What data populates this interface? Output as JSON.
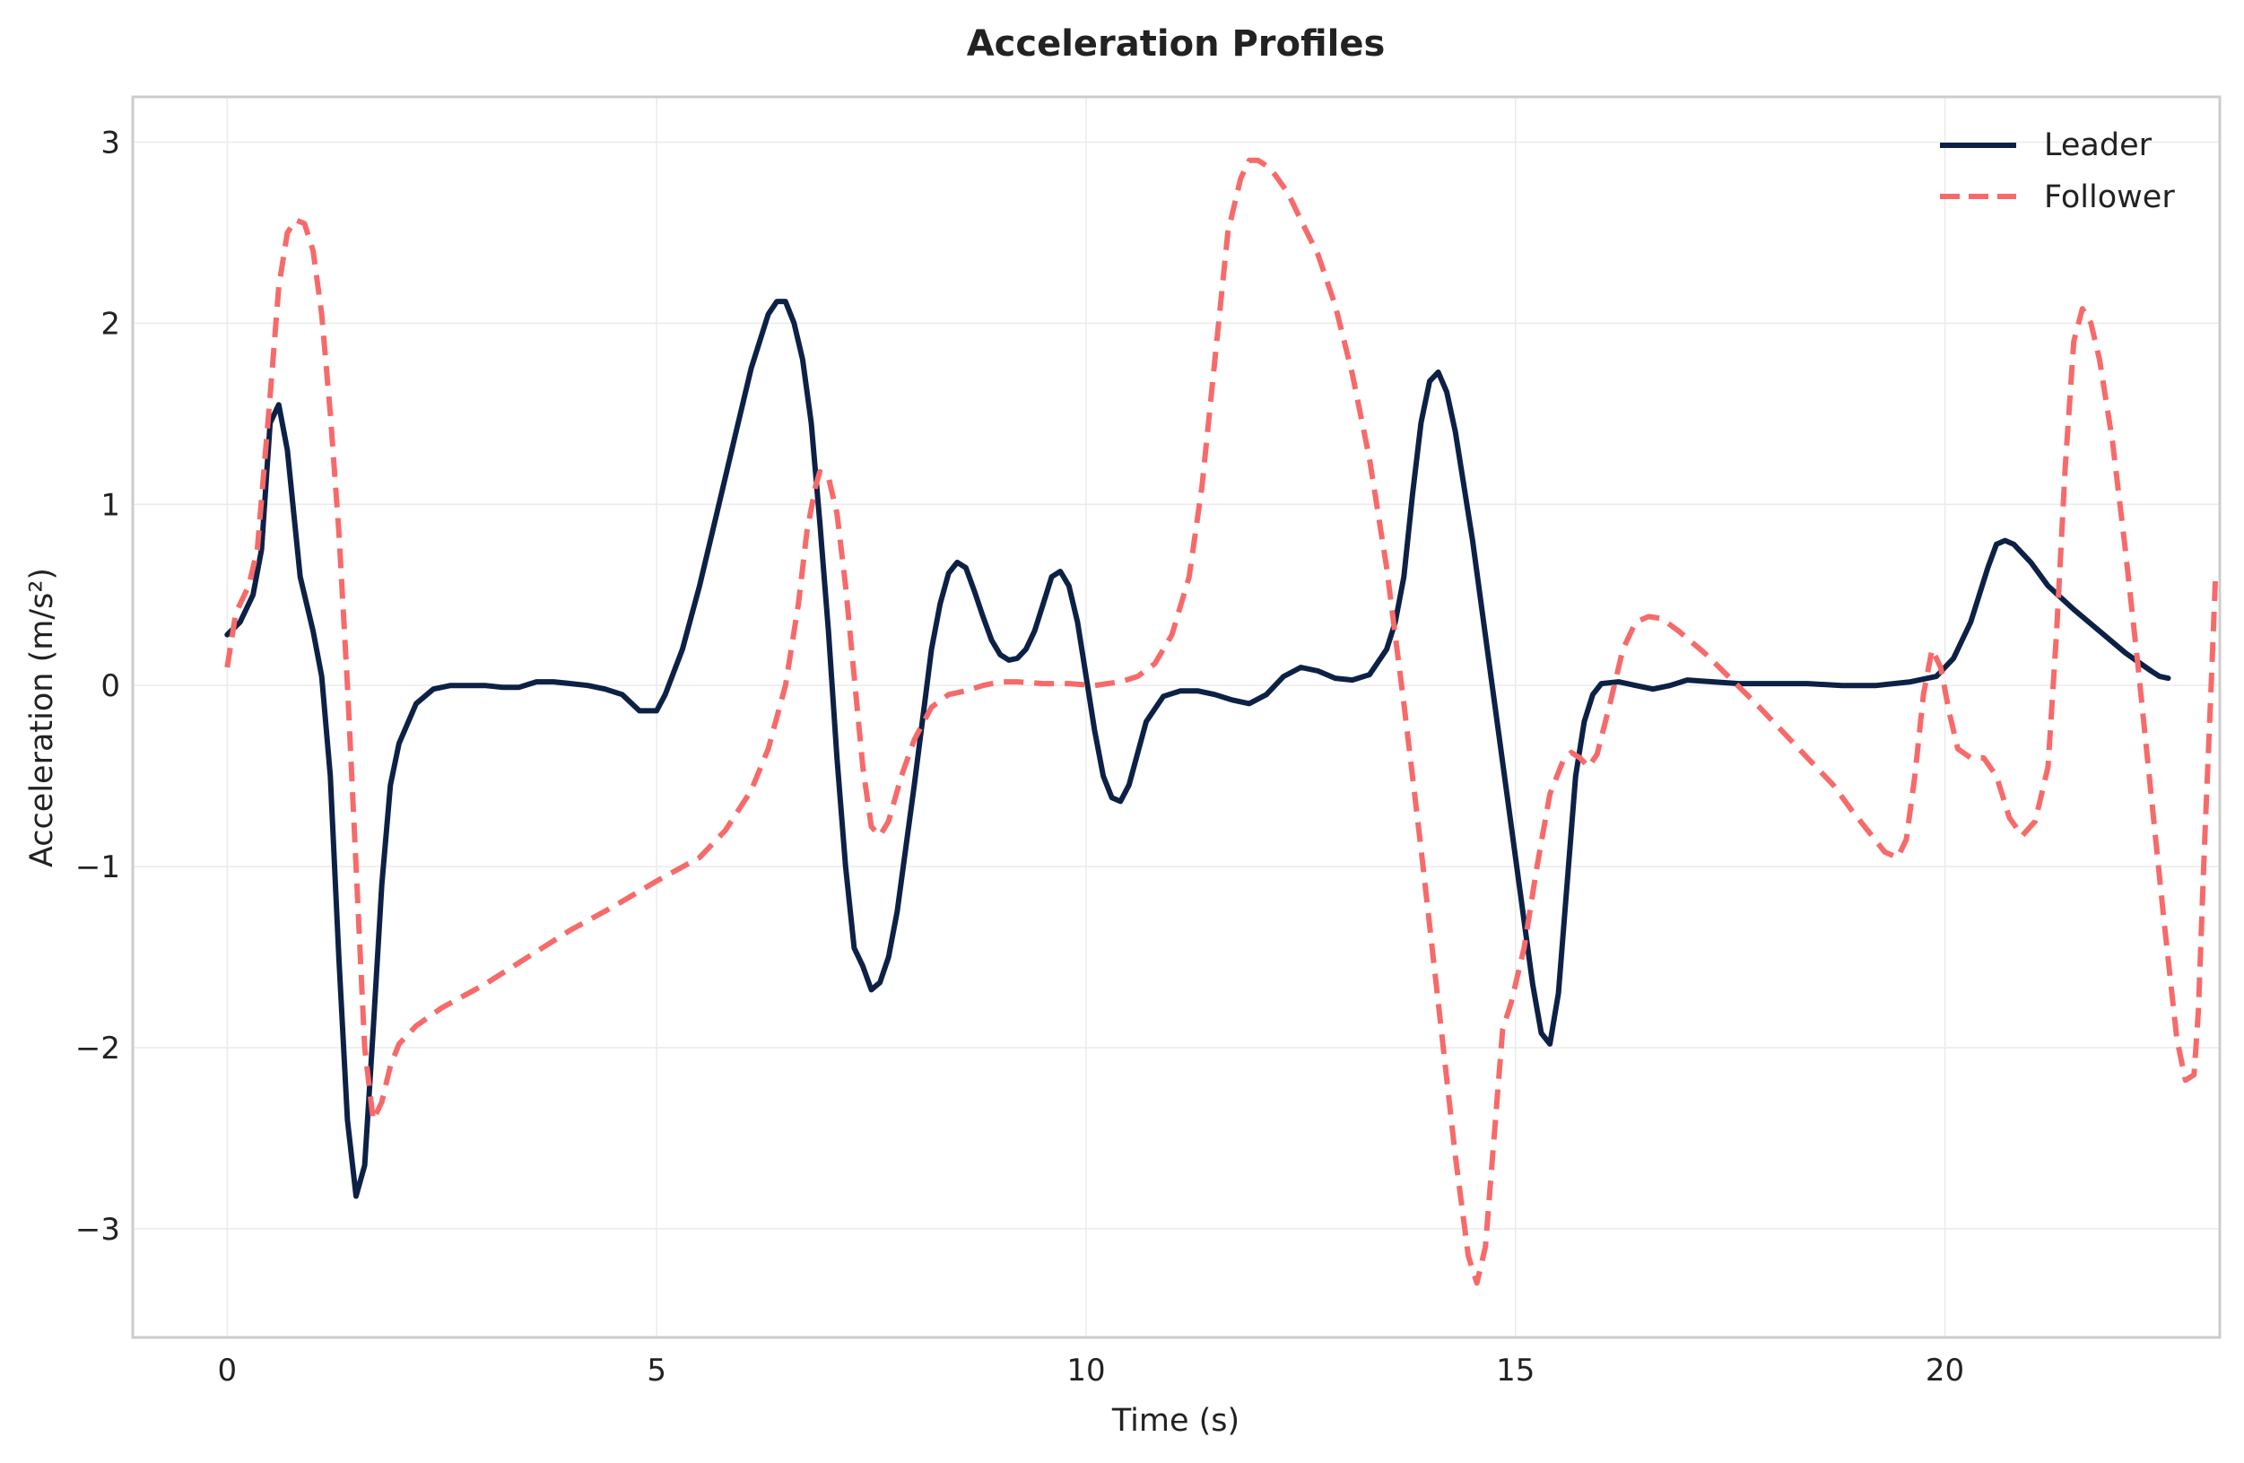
{
  "chart_data": {
    "type": "line",
    "title": "Acceleration Profiles",
    "xlabel": "Time (s)",
    "ylabel": "Acceleration (m/s²)",
    "xlim": [
      -1.1,
      23.2
    ],
    "ylim": [
      -3.6,
      3.25
    ],
    "xticks": [
      0,
      5,
      10,
      15,
      20
    ],
    "yticks": [
      3,
      2,
      1,
      0,
      -1,
      -2,
      -3
    ],
    "xtick_labels": [
      "0",
      "5",
      "10",
      "15",
      "20"
    ],
    "ytick_labels": [
      "3",
      "2",
      "1",
      "0",
      "−1",
      "−2",
      "−3"
    ],
    "grid": true,
    "legend_position": "top-right",
    "series": [
      {
        "name": "Leader",
        "color": "#0d2146",
        "style": "solid",
        "points": [
          [
            0.0,
            0.28
          ],
          [
            0.15,
            0.35
          ],
          [
            0.3,
            0.5
          ],
          [
            0.4,
            0.75
          ],
          [
            0.5,
            1.45
          ],
          [
            0.6,
            1.55
          ],
          [
            0.7,
            1.3
          ],
          [
            0.85,
            0.6
          ],
          [
            1.0,
            0.3
          ],
          [
            1.1,
            0.05
          ],
          [
            1.2,
            -0.5
          ],
          [
            1.3,
            -1.5
          ],
          [
            1.4,
            -2.4
          ],
          [
            1.5,
            -2.82
          ],
          [
            1.6,
            -2.65
          ],
          [
            1.7,
            -1.9
          ],
          [
            1.8,
            -1.1
          ],
          [
            1.9,
            -0.55
          ],
          [
            2.0,
            -0.32
          ],
          [
            2.2,
            -0.1
          ],
          [
            2.4,
            -0.02
          ],
          [
            2.6,
            0.0
          ],
          [
            2.8,
            0.0
          ],
          [
            3.0,
            0.0
          ],
          [
            3.2,
            -0.01
          ],
          [
            3.4,
            -0.01
          ],
          [
            3.6,
            0.02
          ],
          [
            3.8,
            0.02
          ],
          [
            4.0,
            0.01
          ],
          [
            4.2,
            0.0
          ],
          [
            4.4,
            -0.02
          ],
          [
            4.6,
            -0.05
          ],
          [
            4.8,
            -0.14
          ],
          [
            5.0,
            -0.14
          ],
          [
            5.1,
            -0.05
          ],
          [
            5.3,
            0.2
          ],
          [
            5.5,
            0.55
          ],
          [
            5.7,
            0.95
          ],
          [
            5.9,
            1.35
          ],
          [
            6.1,
            1.75
          ],
          [
            6.3,
            2.05
          ],
          [
            6.4,
            2.12
          ],
          [
            6.5,
            2.12
          ],
          [
            6.6,
            2.0
          ],
          [
            6.7,
            1.8
          ],
          [
            6.8,
            1.45
          ],
          [
            6.9,
            0.9
          ],
          [
            7.0,
            0.3
          ],
          [
            7.1,
            -0.4
          ],
          [
            7.2,
            -1.0
          ],
          [
            7.3,
            -1.45
          ],
          [
            7.4,
            -1.55
          ],
          [
            7.5,
            -1.68
          ],
          [
            7.6,
            -1.64
          ],
          [
            7.7,
            -1.5
          ],
          [
            7.8,
            -1.25
          ],
          [
            8.0,
            -0.55
          ],
          [
            8.2,
            0.2
          ],
          [
            8.3,
            0.45
          ],
          [
            8.4,
            0.62
          ],
          [
            8.5,
            0.68
          ],
          [
            8.6,
            0.65
          ],
          [
            8.7,
            0.52
          ],
          [
            8.8,
            0.38
          ],
          [
            8.9,
            0.25
          ],
          [
            9.0,
            0.17
          ],
          [
            9.1,
            0.14
          ],
          [
            9.2,
            0.15
          ],
          [
            9.3,
            0.2
          ],
          [
            9.4,
            0.3
          ],
          [
            9.5,
            0.45
          ],
          [
            9.6,
            0.6
          ],
          [
            9.7,
            0.63
          ],
          [
            9.8,
            0.55
          ],
          [
            9.9,
            0.35
          ],
          [
            10.0,
            0.05
          ],
          [
            10.1,
            -0.25
          ],
          [
            10.2,
            -0.5
          ],
          [
            10.3,
            -0.62
          ],
          [
            10.4,
            -0.64
          ],
          [
            10.5,
            -0.55
          ],
          [
            10.7,
            -0.2
          ],
          [
            10.9,
            -0.06
          ],
          [
            11.1,
            -0.03
          ],
          [
            11.3,
            -0.03
          ],
          [
            11.5,
            -0.05
          ],
          [
            11.7,
            -0.08
          ],
          [
            11.9,
            -0.1
          ],
          [
            12.1,
            -0.05
          ],
          [
            12.3,
            0.05
          ],
          [
            12.5,
            0.1
          ],
          [
            12.7,
            0.08
          ],
          [
            12.9,
            0.04
          ],
          [
            13.1,
            0.03
          ],
          [
            13.3,
            0.06
          ],
          [
            13.5,
            0.2
          ],
          [
            13.6,
            0.35
          ],
          [
            13.7,
            0.6
          ],
          [
            13.8,
            1.05
          ],
          [
            13.9,
            1.45
          ],
          [
            14.0,
            1.68
          ],
          [
            14.1,
            1.73
          ],
          [
            14.2,
            1.62
          ],
          [
            14.3,
            1.4
          ],
          [
            14.5,
            0.8
          ],
          [
            14.7,
            0.1
          ],
          [
            14.9,
            -0.6
          ],
          [
            15.1,
            -1.3
          ],
          [
            15.2,
            -1.65
          ],
          [
            15.3,
            -1.92
          ],
          [
            15.4,
            -1.98
          ],
          [
            15.5,
            -1.7
          ],
          [
            15.6,
            -1.1
          ],
          [
            15.7,
            -0.5
          ],
          [
            15.8,
            -0.2
          ],
          [
            15.9,
            -0.05
          ],
          [
            16.0,
            0.01
          ],
          [
            16.2,
            0.02
          ],
          [
            16.4,
            0.0
          ],
          [
            16.6,
            -0.02
          ],
          [
            16.8,
            0.0
          ],
          [
            17.0,
            0.03
          ],
          [
            17.3,
            0.02
          ],
          [
            17.6,
            0.01
          ],
          [
            18.0,
            0.01
          ],
          [
            18.4,
            0.01
          ],
          [
            18.8,
            0.0
          ],
          [
            19.2,
            0.0
          ],
          [
            19.6,
            0.02
          ],
          [
            19.9,
            0.05
          ],
          [
            20.1,
            0.15
          ],
          [
            20.3,
            0.35
          ],
          [
            20.5,
            0.65
          ],
          [
            20.6,
            0.78
          ],
          [
            20.7,
            0.8
          ],
          [
            20.8,
            0.78
          ],
          [
            21.0,
            0.68
          ],
          [
            21.2,
            0.55
          ],
          [
            21.5,
            0.42
          ],
          [
            21.8,
            0.3
          ],
          [
            22.1,
            0.18
          ],
          [
            22.4,
            0.08
          ],
          [
            22.5,
            0.05
          ],
          [
            22.6,
            0.04
          ]
        ]
      },
      {
        "name": "Follower",
        "color": "#f76a6a",
        "style": "dashed",
        "points": [
          [
            0.0,
            0.1
          ],
          [
            0.1,
            0.4
          ],
          [
            0.25,
            0.55
          ],
          [
            0.35,
            0.75
          ],
          [
            0.5,
            1.6
          ],
          [
            0.6,
            2.2
          ],
          [
            0.7,
            2.5
          ],
          [
            0.8,
            2.57
          ],
          [
            0.9,
            2.55
          ],
          [
            1.0,
            2.4
          ],
          [
            1.1,
            2.05
          ],
          [
            1.2,
            1.5
          ],
          [
            1.3,
            0.85
          ],
          [
            1.4,
            0.0
          ],
          [
            1.5,
            -1.0
          ],
          [
            1.6,
            -2.0
          ],
          [
            1.7,
            -2.4
          ],
          [
            1.8,
            -2.3
          ],
          [
            1.9,
            -2.1
          ],
          [
            2.0,
            -1.98
          ],
          [
            2.2,
            -1.88
          ],
          [
            2.5,
            -1.78
          ],
          [
            3.0,
            -1.65
          ],
          [
            3.5,
            -1.5
          ],
          [
            4.0,
            -1.35
          ],
          [
            4.5,
            -1.22
          ],
          [
            5.0,
            -1.08
          ],
          [
            5.5,
            -0.95
          ],
          [
            5.8,
            -0.8
          ],
          [
            6.1,
            -0.58
          ],
          [
            6.3,
            -0.35
          ],
          [
            6.5,
            0.0
          ],
          [
            6.65,
            0.45
          ],
          [
            6.75,
            0.85
          ],
          [
            6.85,
            1.1
          ],
          [
            6.9,
            1.18
          ],
          [
            7.0,
            1.15
          ],
          [
            7.1,
            0.95
          ],
          [
            7.2,
            0.55
          ],
          [
            7.3,
            0.05
          ],
          [
            7.4,
            -0.45
          ],
          [
            7.5,
            -0.78
          ],
          [
            7.6,
            -0.83
          ],
          [
            7.7,
            -0.75
          ],
          [
            7.85,
            -0.5
          ],
          [
            8.0,
            -0.3
          ],
          [
            8.2,
            -0.12
          ],
          [
            8.4,
            -0.05
          ],
          [
            8.6,
            -0.03
          ],
          [
            8.8,
            0.0
          ],
          [
            9.0,
            0.02
          ],
          [
            9.2,
            0.02
          ],
          [
            9.5,
            0.01
          ],
          [
            9.8,
            0.01
          ],
          [
            10.1,
            0.0
          ],
          [
            10.4,
            0.02
          ],
          [
            10.6,
            0.05
          ],
          [
            10.8,
            0.12
          ],
          [
            11.0,
            0.28
          ],
          [
            11.2,
            0.6
          ],
          [
            11.35,
            1.1
          ],
          [
            11.5,
            1.8
          ],
          [
            11.65,
            2.5
          ],
          [
            11.8,
            2.8
          ],
          [
            11.9,
            2.9
          ],
          [
            12.0,
            2.9
          ],
          [
            12.1,
            2.87
          ],
          [
            12.2,
            2.82
          ],
          [
            12.35,
            2.72
          ],
          [
            12.5,
            2.57
          ],
          [
            12.7,
            2.38
          ],
          [
            12.9,
            2.1
          ],
          [
            13.1,
            1.72
          ],
          [
            13.3,
            1.25
          ],
          [
            13.5,
            0.65
          ],
          [
            13.7,
            -0.1
          ],
          [
            13.9,
            -0.9
          ],
          [
            14.1,
            -1.75
          ],
          [
            14.3,
            -2.6
          ],
          [
            14.45,
            -3.15
          ],
          [
            14.55,
            -3.3
          ],
          [
            14.65,
            -3.1
          ],
          [
            14.75,
            -2.5
          ],
          [
            14.85,
            -1.9
          ],
          [
            14.95,
            -1.75
          ],
          [
            15.1,
            -1.45
          ],
          [
            15.25,
            -1.0
          ],
          [
            15.4,
            -0.6
          ],
          [
            15.55,
            -0.42
          ],
          [
            15.65,
            -0.37
          ],
          [
            15.75,
            -0.4
          ],
          [
            15.85,
            -0.45
          ],
          [
            15.95,
            -0.38
          ],
          [
            16.1,
            -0.1
          ],
          [
            16.25,
            0.2
          ],
          [
            16.4,
            0.35
          ],
          [
            16.55,
            0.38
          ],
          [
            16.7,
            0.37
          ],
          [
            16.9,
            0.3
          ],
          [
            17.2,
            0.18
          ],
          [
            17.5,
            0.04
          ],
          [
            17.8,
            -0.1
          ],
          [
            18.1,
            -0.25
          ],
          [
            18.4,
            -0.4
          ],
          [
            18.7,
            -0.55
          ],
          [
            18.9,
            -0.68
          ],
          [
            19.1,
            -0.8
          ],
          [
            19.3,
            -0.92
          ],
          [
            19.45,
            -0.95
          ],
          [
            19.55,
            -0.85
          ],
          [
            19.65,
            -0.5
          ],
          [
            19.75,
            -0.05
          ],
          [
            19.85,
            0.2
          ],
          [
            19.95,
            0.1
          ],
          [
            20.05,
            -0.15
          ],
          [
            20.15,
            -0.35
          ],
          [
            20.3,
            -0.4
          ],
          [
            20.45,
            -0.4
          ],
          [
            20.6,
            -0.5
          ],
          [
            20.75,
            -0.73
          ],
          [
            20.9,
            -0.83
          ],
          [
            21.05,
            -0.75
          ],
          [
            21.2,
            -0.45
          ],
          [
            21.3,
            0.3
          ],
          [
            21.4,
            1.2
          ],
          [
            21.5,
            1.9
          ],
          [
            21.6,
            2.08
          ],
          [
            21.7,
            2.0
          ],
          [
            21.8,
            1.8
          ],
          [
            21.95,
            1.35
          ],
          [
            22.1,
            0.75
          ],
          [
            22.25,
            0.1
          ],
          [
            22.4,
            -0.6
          ],
          [
            22.55,
            -1.3
          ],
          [
            22.7,
            -1.95
          ],
          [
            22.8,
            -2.18
          ],
          [
            22.9,
            -2.15
          ],
          [
            22.95,
            -1.8
          ],
          [
            23.02,
            -0.9
          ],
          [
            23.1,
            0.0
          ],
          [
            23.15,
            0.6
          ]
        ]
      }
    ]
  }
}
